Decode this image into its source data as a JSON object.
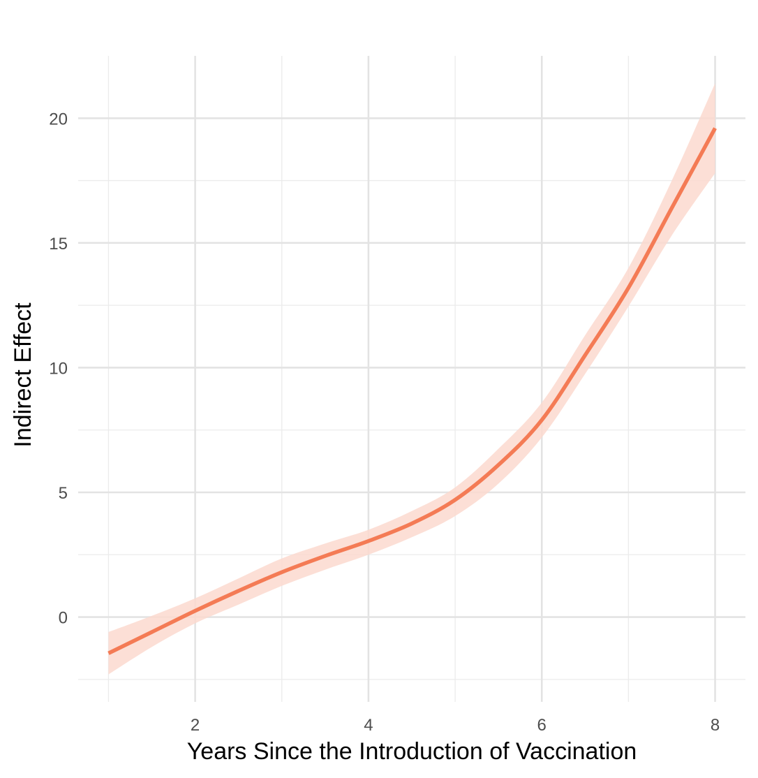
{
  "chart_data": {
    "type": "line",
    "title": "",
    "xlabel": "Years Since the Introduction of Vaccination",
    "ylabel": "Indirect Effect",
    "xlim": [
      0.65,
      8.35
    ],
    "ylim": [
      -3.4,
      22.5
    ],
    "x_ticks": [
      2,
      4,
      6,
      8
    ],
    "x_tick_labels": [
      "2",
      "4",
      "6",
      "8"
    ],
    "y_ticks": [
      0,
      5,
      10,
      15,
      20
    ],
    "y_tick_labels": [
      "0",
      "5",
      "10",
      "15",
      "20"
    ],
    "x_minor_ticks": [
      1,
      3,
      5,
      7
    ],
    "y_minor_ticks": [
      -2.5,
      2.5,
      7.5,
      12.5,
      17.5
    ],
    "grid": true,
    "legend": "none",
    "line_color": "#F47B55",
    "ribbon_color": "#FCD9CF",
    "series": [
      {
        "x": [
          1.0,
          1.5,
          2.0,
          2.5,
          3.0,
          3.5,
          4.0,
          4.5,
          5.0,
          5.5,
          6.0,
          6.5,
          7.0,
          7.5,
          8.0
        ],
        "y": [
          -1.45,
          -0.6,
          0.25,
          1.05,
          1.8,
          2.45,
          3.05,
          3.75,
          4.7,
          6.1,
          7.9,
          10.5,
          13.2,
          16.4,
          19.6
        ],
        "y_lower": [
          -2.3,
          -1.2,
          -0.25,
          0.5,
          1.25,
          1.9,
          2.5,
          3.2,
          4.05,
          5.35,
          7.2,
          9.75,
          12.45,
          15.3,
          17.8
        ],
        "y_upper": [
          -0.6,
          0.05,
          0.75,
          1.55,
          2.35,
          2.95,
          3.5,
          4.25,
          5.2,
          6.75,
          8.6,
          11.3,
          14.0,
          17.5,
          21.4
        ]
      }
    ]
  }
}
